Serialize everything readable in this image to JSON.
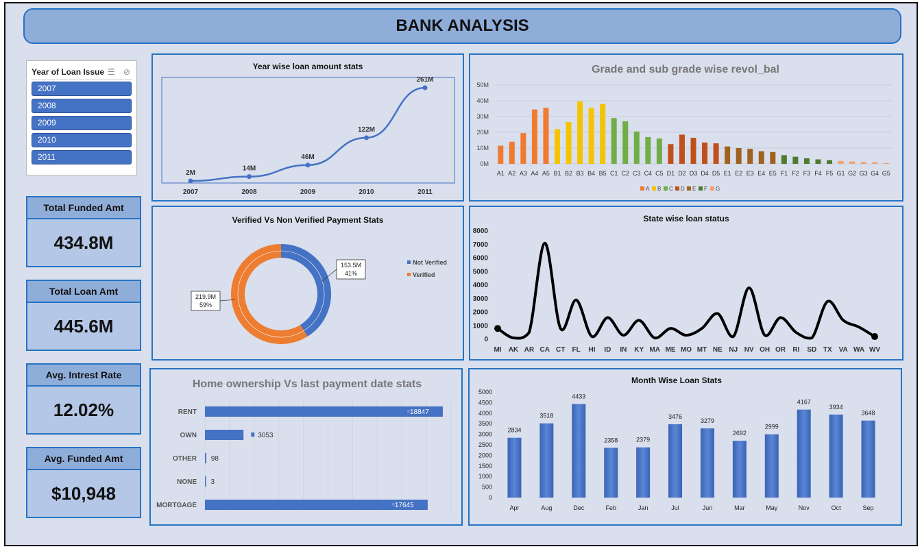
{
  "header": {
    "title": "BANK ANALYSIS"
  },
  "slicer": {
    "title": "Year of Loan Issue",
    "multiselect_icon": "multi-select-icon",
    "clear_icon": "clear-filter-icon",
    "items": [
      "2007",
      "2008",
      "2009",
      "2010",
      "2011"
    ]
  },
  "kpis": [
    {
      "label": "Total Funded Amt",
      "value": "434.8M"
    },
    {
      "label": "Total Loan Amt",
      "value": "445.6M"
    },
    {
      "label": "Avg. Intrest Rate",
      "value": "12.02%"
    },
    {
      "label": "Avg. Funded Amt",
      "value": "$10,948"
    }
  ],
  "colors": {
    "blue": "#4472c4",
    "orange": "#ed7d31",
    "panel_border": "#2673c4",
    "grade_A": "#f07a30",
    "grade_B": "#f5c400",
    "grade_C": "#70ad47",
    "grade_D": "#c0501a",
    "grade_E": "#a0621f",
    "grade_F": "#4e7a2c",
    "grade_G": "#f4a070"
  },
  "chart_data": [
    {
      "id": "year",
      "type": "line",
      "title": "Year wise loan amount stats",
      "categories": [
        "2007",
        "2008",
        "2009",
        "2010",
        "2011"
      ],
      "values": [
        2,
        14,
        46,
        122,
        261
      ],
      "data_labels": [
        "2M",
        "14M",
        "46M",
        "122M",
        "261M"
      ],
      "ylim": [
        0,
        280
      ]
    },
    {
      "id": "grade",
      "type": "bar",
      "title": "Grade and sub grade wise revol_bal",
      "categories": [
        "A1",
        "A2",
        "A3",
        "A4",
        "A5",
        "B1",
        "B2",
        "B3",
        "B4",
        "B5",
        "C1",
        "C2",
        "C3",
        "C4",
        "C5",
        "D1",
        "D2",
        "D3",
        "D4",
        "D5",
        "E1",
        "E2",
        "E3",
        "E4",
        "E5",
        "F1",
        "F2",
        "F3",
        "F4",
        "F5",
        "G1",
        "G2",
        "G3",
        "G4",
        "G5"
      ],
      "values": [
        11.5,
        14,
        19.5,
        34.5,
        35.5,
        22,
        26.5,
        39.5,
        35.5,
        38,
        29,
        27,
        20.5,
        17,
        16,
        12.5,
        18.5,
        16.5,
        13.5,
        13,
        11,
        10,
        9.5,
        8,
        7.5,
        5.5,
        4.5,
        3.5,
        2.8,
        2.3,
        1.8,
        1.5,
        1.2,
        1,
        0.6
      ],
      "groups": [
        "A",
        "A",
        "A",
        "A",
        "A",
        "B",
        "B",
        "B",
        "B",
        "B",
        "C",
        "C",
        "C",
        "C",
        "C",
        "D",
        "D",
        "D",
        "D",
        "D",
        "E",
        "E",
        "E",
        "E",
        "E",
        "F",
        "F",
        "F",
        "F",
        "F",
        "G",
        "G",
        "G",
        "G",
        "G"
      ],
      "y_ticks": [
        "0M",
        "10M",
        "20M",
        "30M",
        "40M",
        "50M"
      ],
      "ylim": [
        0,
        50
      ],
      "legend": [
        "A",
        "B",
        "C",
        "D",
        "E",
        "F",
        "G"
      ],
      "legend_position": "bottom"
    },
    {
      "id": "verified",
      "type": "pie",
      "title": "Verified Vs Non Verified Payment Stats",
      "categories": [
        "Not Verified",
        "Verified"
      ],
      "values": [
        153.5,
        219.9
      ],
      "data_labels": [
        [
          "153.5M",
          "41%"
        ],
        [
          "219.9M",
          "59%"
        ]
      ],
      "legend_position": "right"
    },
    {
      "id": "state",
      "type": "line",
      "title": "State wise loan status",
      "categories": [
        "MI",
        "AK",
        "AR",
        "CA",
        "CT",
        "FL",
        "HI",
        "ID",
        "IN",
        "KY",
        "MA",
        "ME",
        "MO",
        "MT",
        "NE",
        "NJ",
        "NV",
        "OH",
        "OR",
        "RI",
        "SD",
        "TX",
        "VA",
        "WA",
        "WV"
      ],
      "values": [
        800,
        100,
        500,
        7100,
        800,
        2900,
        200,
        1600,
        300,
        1400,
        100,
        800,
        300,
        800,
        1900,
        200,
        3800,
        300,
        1600,
        500,
        100,
        2800,
        1400,
        900,
        200
      ],
      "y_ticks": [
        "0",
        "1000",
        "2000",
        "3000",
        "4000",
        "5000",
        "6000",
        "7000",
        "8000"
      ],
      "ylim": [
        0,
        8000
      ]
    },
    {
      "id": "home",
      "type": "bar",
      "orientation": "horizontal",
      "title": "Home ownership Vs last payment date stats",
      "categories": [
        "RENT",
        "OWN",
        "OTHER",
        "NONE",
        "MORTGAGE"
      ],
      "values": [
        18847,
        3053,
        98,
        3,
        17645
      ],
      "data_labels": [
        "18847",
        "3053",
        "98",
        "3",
        "17645"
      ],
      "xlim": [
        0,
        19500
      ]
    },
    {
      "id": "month",
      "type": "bar",
      "title": "Month Wise Loan Stats",
      "categories": [
        "Apr",
        "Aug",
        "Dec",
        "Feb",
        "Jan",
        "Jul",
        "Jun",
        "Mar",
        "May",
        "Nov",
        "Oct",
        "Sep"
      ],
      "values": [
        2834,
        3518,
        4433,
        2358,
        2379,
        3476,
        3279,
        2692,
        2999,
        4167,
        3934,
        3648
      ],
      "data_labels": [
        "2834",
        "3518",
        "4433",
        "2358",
        "2379",
        "3476",
        "3279",
        "2692",
        "2999",
        "4167",
        "3934",
        "3648"
      ],
      "y_ticks": [
        "0",
        "500",
        "1000",
        "1500",
        "2000",
        "2500",
        "3000",
        "3500",
        "4000",
        "4500",
        "5000"
      ],
      "ylim": [
        0,
        5000
      ]
    }
  ]
}
